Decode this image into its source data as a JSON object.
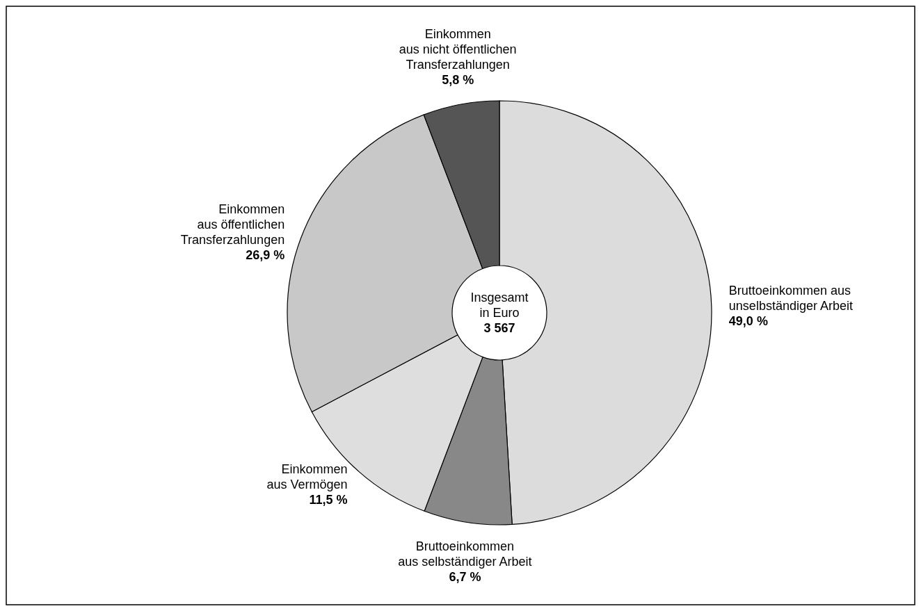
{
  "chart_data": {
    "type": "donut",
    "categories": [
      "Bruttoeinkommen aus\nunselbständiger Arbeit",
      "Bruttoeinkommen\naus selbständiger Arbeit",
      "Einkommen\naus Vermögen",
      "Einkommen\naus öffentlichen\nTransferzahlungen",
      "Einkommen\naus nicht öffentlichen\nTransferzahlungen"
    ],
    "values": [
      49.0,
      6.7,
      11.5,
      26.9,
      5.8
    ],
    "value_labels": [
      "49,0 %",
      "6,7 %",
      "11,5 %",
      "26,9 %",
      "5,8 %"
    ],
    "colors": [
      "#dcdcdc",
      "#888888",
      "#dedede",
      "#c8c8c8",
      "#555555"
    ],
    "annotations": [
      "Insgesamt\nin Euro",
      "3 567"
    ]
  }
}
